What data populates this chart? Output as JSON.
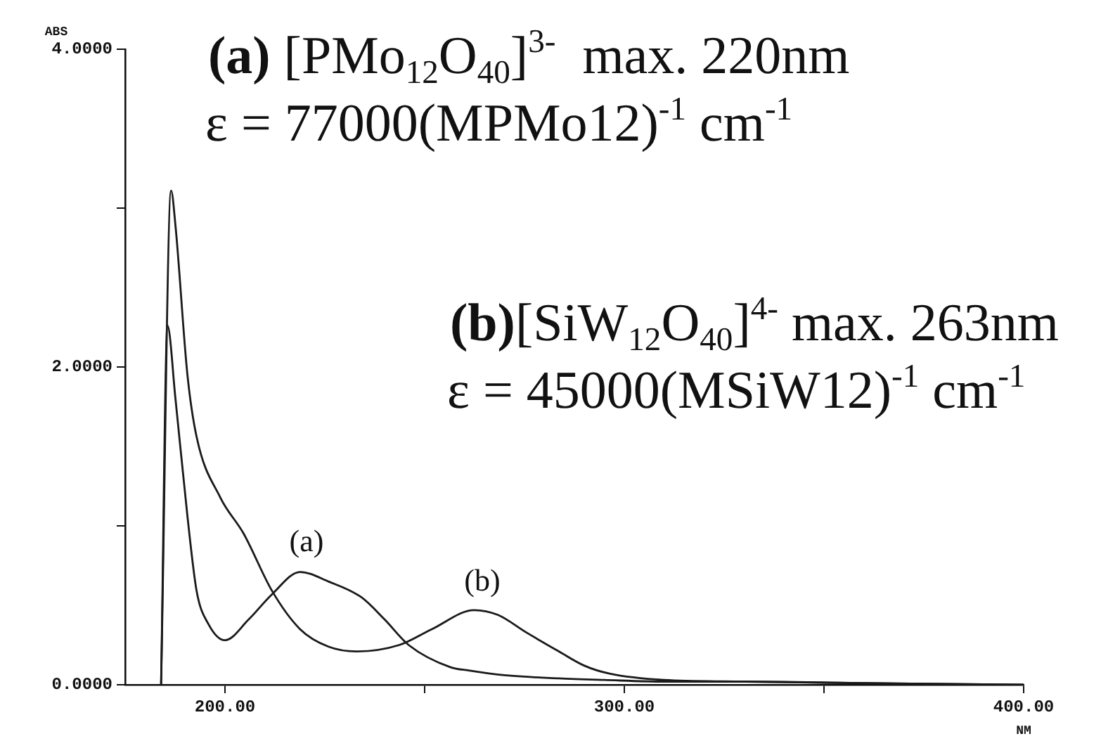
{
  "chart_data": {
    "type": "line",
    "xlabel": "NM",
    "ylabel": "ABS",
    "xlim": [
      175,
      400
    ],
    "ylim": [
      0,
      4
    ],
    "xticks": [
      {
        "value": 200,
        "label": "200.00"
      },
      {
        "value": 250,
        "label": null
      },
      {
        "value": 300,
        "label": "300.00"
      },
      {
        "value": 350,
        "label": null
      },
      {
        "value": 400,
        "label": "400.00"
      }
    ],
    "yticks": [
      {
        "value": 0,
        "label": "0.0000"
      },
      {
        "value": 1,
        "label": null
      },
      {
        "value": 2,
        "label": "2.0000"
      },
      {
        "value": 3,
        "label": null
      },
      {
        "value": 4,
        "label": "4.0000"
      }
    ],
    "grid": false,
    "legend": false,
    "marker": "none",
    "line_style": "solid",
    "series": [
      {
        "color": "#1a1a1a",
        "x": [
          184,
          185.6,
          187.6,
          190.6,
          192.9,
          195.9,
          200,
          205.9,
          211.8,
          218.8,
          225.9,
          234.2,
          240,
          246,
          256.5,
          261,
          270,
          283.6,
          295,
          310,
          330,
          360,
          400
        ],
        "values": [
          0,
          2.26,
          1.8,
          1.06,
          0.59,
          0.38,
          0.28,
          0.41,
          0.57,
          0.71,
          0.65,
          0.55,
          0.41,
          0.25,
          0.11,
          0.09,
          0.06,
          0.04,
          0.03,
          0.02,
          0.02,
          0.01,
          0
        ]
      },
      {
        "color": "#1a1a1a",
        "x": [
          184,
          186.5,
          187.6,
          190.6,
          192.9,
          198.8,
          204.7,
          211.8,
          218.8,
          225.9,
          233,
          243.6,
          251.8,
          262.4,
          268.3,
          275.4,
          283.6,
          290,
          296.3,
          310,
          330,
          360,
          400
        ],
        "values": [
          0,
          3.11,
          2.89,
          1.95,
          1.56,
          1.18,
          0.95,
          0.59,
          0.35,
          0.24,
          0.21,
          0.25,
          0.35,
          0.47,
          0.44,
          0.33,
          0.21,
          0.12,
          0.07,
          0.03,
          0.02,
          0.01,
          0
        ]
      }
    ],
    "annotations": [
      "(a) [PMo$_{12}$O$_{40}$]$^{3-}$  max. 220nm",
      "ε = 77000(MPMo12)$^{-1}$ cm$^{-1}$",
      "(b)[SiW$_{12}$O$_{40}$]$^{4-}$ max. 263nm",
      "ε = 45000(MSiW12)$^{-1}$ cm$^{-1}$",
      "(a)",
      "(b)"
    ]
  }
}
